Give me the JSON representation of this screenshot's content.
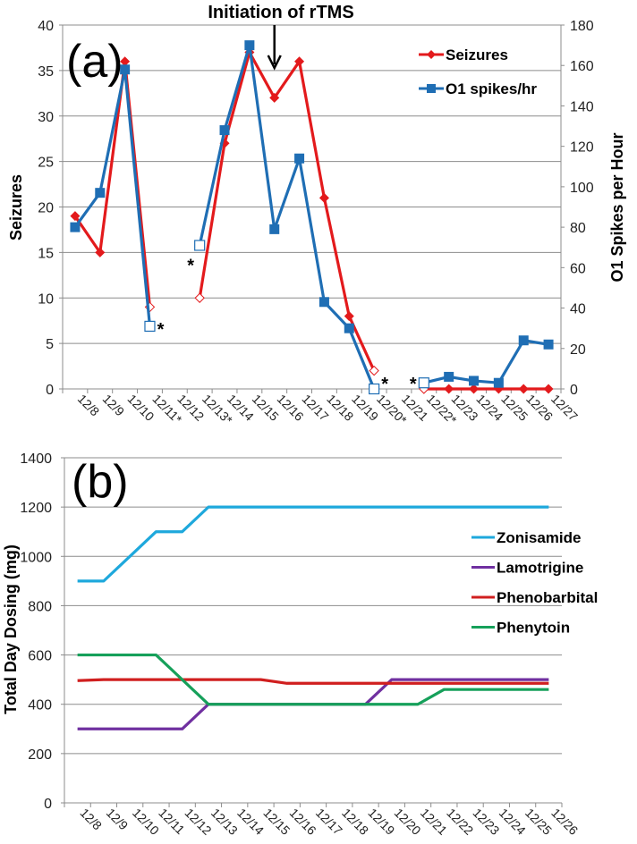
{
  "chart_data": [
    {
      "id": "a",
      "type": "line",
      "panel_label": "(a)",
      "annotation": "Initiation of rTMS",
      "annotation_category": "12/16",
      "categories": [
        "12/8",
        "12/9",
        "12/10",
        "12/11",
        "12/12",
        "12/13",
        "12/14",
        "12/15",
        "12/16",
        "12/17",
        "12/18",
        "12/19",
        "12/20",
        "12/21",
        "12/22",
        "12/23",
        "12/24",
        "12/25",
        "12/26",
        "12/27"
      ],
      "category_labels": [
        "12/8",
        "12/9",
        "12/10",
        "12/11*",
        "12/12",
        "12/13*",
        "12/14",
        "12/15",
        "12/16",
        "12/17",
        "12/18",
        "12/19",
        "12/20*",
        "12/21",
        "12/22*",
        "12/23",
        "12/24",
        "12/25",
        "12/26",
        "12/27"
      ],
      "ylabel": "Seizures",
      "ylabel_right": "O1 Spikes per Hour",
      "ylim": [
        0,
        40
      ],
      "yticks": [
        0,
        5,
        10,
        15,
        20,
        25,
        30,
        35,
        40
      ],
      "ylim_right": [
        0,
        180
      ],
      "yticks_right": [
        0,
        20,
        40,
        60,
        80,
        100,
        120,
        140,
        160,
        180
      ],
      "grid": true,
      "legend_position": "top-right",
      "series": [
        {
          "name": "Seizures",
          "color": "#e31a1c",
          "marker": "diamond",
          "axis": "left",
          "segments": [
            [
              0,
              3
            ],
            [
              5,
              12
            ],
            [
              14,
              19
            ]
          ],
          "values": [
            19,
            15,
            36,
            9,
            null,
            10,
            27,
            37,
            32,
            36,
            21,
            8,
            2,
            null,
            0,
            0,
            0,
            0,
            0,
            0
          ],
          "hollow": [
            3,
            5,
            12,
            14
          ]
        },
        {
          "name": "O1 spikes/hr",
          "color": "#1f6eb4",
          "marker": "square",
          "axis": "right",
          "segments": [
            [
              0,
              3
            ],
            [
              5,
              12
            ],
            [
              14,
              19
            ]
          ],
          "values": [
            80,
            97,
            158,
            31,
            null,
            71,
            128,
            170,
            79,
            114,
            43,
            30,
            0,
            null,
            3,
            6,
            4,
            3,
            24,
            22
          ],
          "hollow": [
            3,
            5,
            12,
            14
          ]
        }
      ],
      "asterisks": [
        {
          "category": "12/11",
          "value": 6.5
        },
        {
          "category": "12/13",
          "value": 13.5
        },
        {
          "category": "12/20",
          "value": 0.5
        },
        {
          "category": "12/22",
          "value": 0.5
        }
      ]
    },
    {
      "id": "b",
      "type": "line",
      "panel_label": "(b)",
      "categories": [
        "12/8",
        "12/9",
        "12/10",
        "12/11",
        "12/12",
        "12/13",
        "12/14",
        "12/15",
        "12/16",
        "12/17",
        "12/18",
        "12/19",
        "12/20",
        "12/21",
        "12/22",
        "12/23",
        "12/24",
        "12/25",
        "12/26"
      ],
      "ylabel": "Total Day Dosing (mg)",
      "ylim": [
        0,
        1400
      ],
      "yticks": [
        0,
        200,
        400,
        600,
        800,
        1000,
        1200,
        1400
      ],
      "grid": true,
      "legend_position": "right",
      "series": [
        {
          "name": "Zonisamide",
          "color": "#1ea8dc",
          "values": [
            900,
            900,
            1000,
            1100,
            1100,
            1200,
            1200,
            1200,
            1200,
            1200,
            1200,
            1200,
            1200,
            1200,
            1200,
            1200,
            1200,
            1200,
            1200
          ]
        },
        {
          "name": "Lamotrigine",
          "color": "#7030a0",
          "values": [
            300,
            300,
            300,
            300,
            300,
            400,
            400,
            400,
            400,
            400,
            400,
            400,
            500,
            500,
            500,
            500,
            500,
            500,
            500
          ]
        },
        {
          "name": "Phenobarbital",
          "color": "#d01f1f",
          "values": [
            496,
            500,
            500,
            500,
            500,
            500,
            500,
            500,
            485,
            485,
            485,
            485,
            485,
            485,
            485,
            485,
            485,
            485,
            485
          ]
        },
        {
          "name": "Phenytoin",
          "color": "#16a05a",
          "values": [
            600,
            600,
            600,
            600,
            500,
            400,
            400,
            400,
            400,
            400,
            400,
            400,
            400,
            400,
            460,
            460,
            460,
            460,
            460
          ]
        }
      ]
    }
  ]
}
